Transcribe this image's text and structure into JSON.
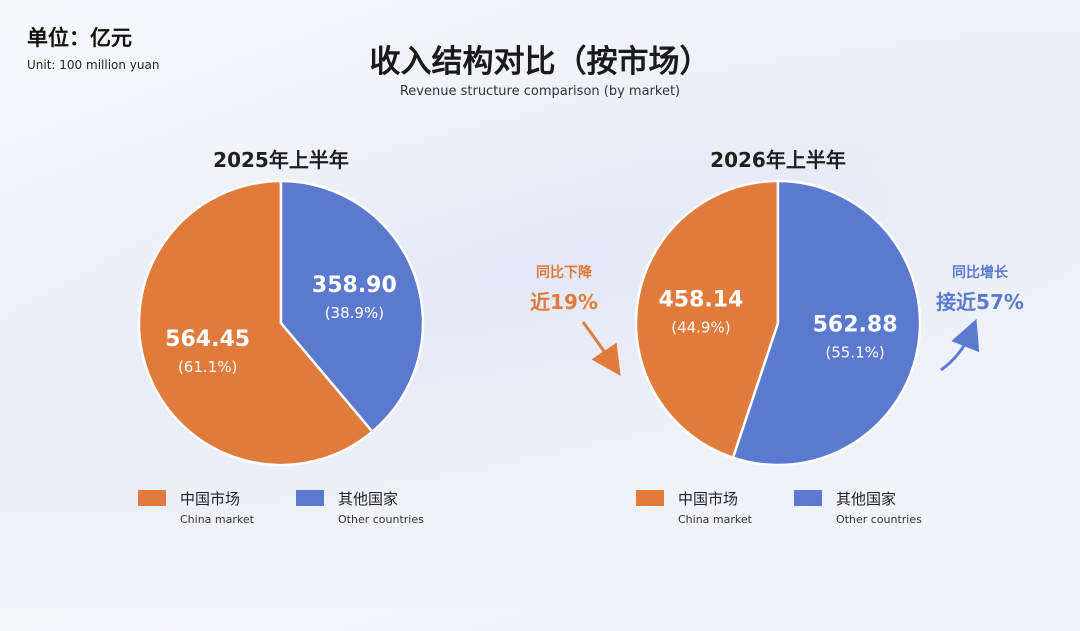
{
  "unit": {
    "cn": "单位：亿元",
    "en": "Unit: 100 million yuan"
  },
  "title": "收入结构对比（按市场）",
  "subtitle": "Revenue structure comparison (by market)",
  "colors": {
    "china": "#e07b3c",
    "other": "#5b79cf"
  },
  "legend": [
    {
      "cn": "中国市场",
      "en": "China market"
    },
    {
      "cn": "其他国家",
      "en": "Other countries"
    }
  ],
  "annotations": {
    "decline": {
      "line1": "同比下降",
      "line2": "近19%"
    },
    "growth": {
      "line1": "同比增长",
      "line2": "接近57%"
    }
  },
  "chart_data": [
    {
      "type": "pie",
      "title": "2025年上半年",
      "slices": [
        {
          "name": "中国市场",
          "value": 564.45,
          "label": "564.45",
          "pct": "(61.1%)"
        },
        {
          "name": "其他国家",
          "value": 358.9,
          "label": "358.90",
          "pct": "(38.9%)"
        }
      ]
    },
    {
      "type": "pie",
      "title": "2026年上半年",
      "slices": [
        {
          "name": "中国市场",
          "value": 458.14,
          "label": "458.14",
          "pct": "(44.9%)"
        },
        {
          "name": "其他国家",
          "value": 562.88,
          "label": "562.88",
          "pct": "(55.1%)"
        }
      ]
    }
  ]
}
